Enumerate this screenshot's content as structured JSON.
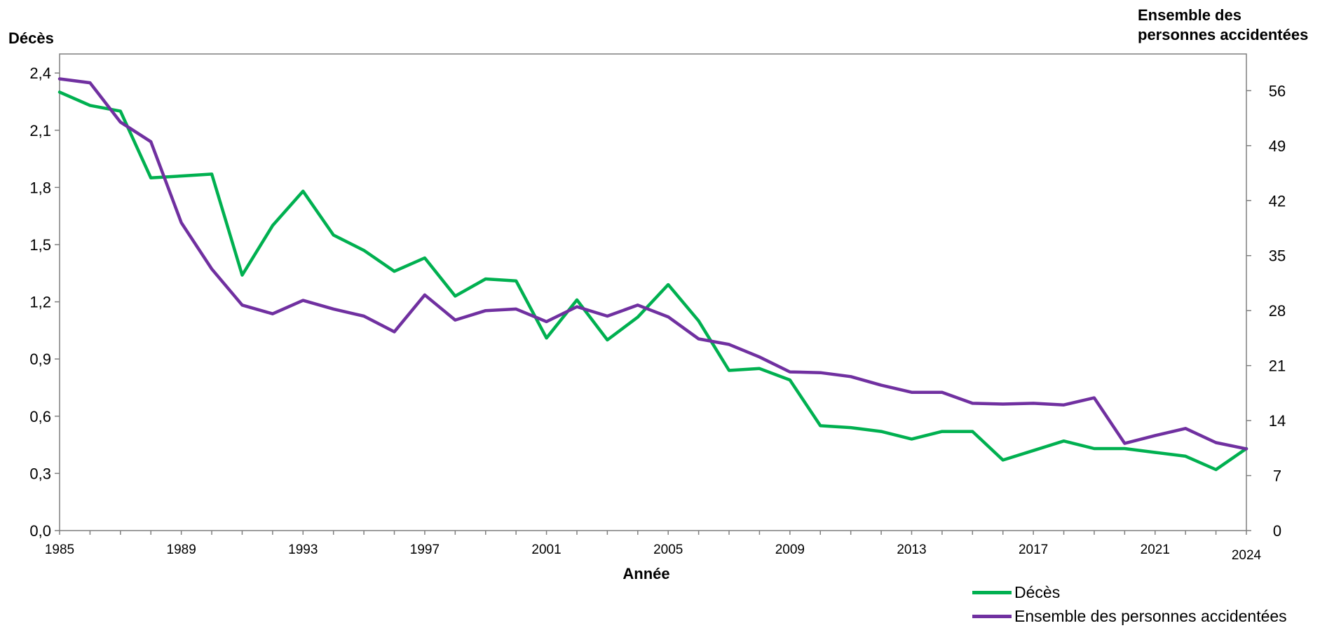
{
  "chart_data": {
    "type": "line",
    "xlabel": "Année",
    "y1label": "Décès",
    "y2label_line1": "Ensemble des",
    "y2label_line2": "personnes accidentées",
    "x": [
      1985,
      1986,
      1987,
      1988,
      1989,
      1990,
      1991,
      1992,
      1993,
      1994,
      1995,
      1996,
      1997,
      1998,
      1999,
      2000,
      2001,
      2002,
      2003,
      2004,
      2005,
      2006,
      2007,
      2008,
      2009,
      2010,
      2011,
      2012,
      2013,
      2014,
      2015,
      2016,
      2017,
      2018,
      2019,
      2020,
      2021,
      2022,
      2023,
      2024
    ],
    "x_ticks": [
      "1985",
      "1989",
      "1993",
      "1997",
      "2001",
      "2005",
      "2009",
      "2013",
      "2017",
      "2021",
      "2024"
    ],
    "y1_ticks": [
      "0,0",
      "0,3",
      "0,6",
      "0,9",
      "1,2",
      "1,5",
      "1,8",
      "2,1",
      "2,4"
    ],
    "y1lim": [
      0,
      2.5
    ],
    "y2_ticks": [
      "0",
      "7",
      "14",
      "21",
      "28",
      "35",
      "42",
      "49",
      "56"
    ],
    "y2lim": [
      0,
      60.67
    ],
    "series": [
      {
        "name": "Décès",
        "axis": "left",
        "color": "#00b050",
        "values": [
          2.3,
          2.23,
          2.2,
          1.85,
          1.86,
          1.87,
          1.34,
          1.6,
          1.78,
          1.55,
          1.47,
          1.36,
          1.43,
          1.23,
          1.32,
          1.31,
          1.01,
          1.21,
          1.0,
          1.12,
          1.29,
          1.1,
          0.84,
          0.85,
          0.79,
          0.55,
          0.54,
          0.52,
          0.48,
          0.52,
          0.52,
          0.37,
          0.42,
          0.47,
          0.43,
          0.43,
          0.41,
          0.39,
          0.32,
          0.43
        ]
      },
      {
        "name": "Ensemble des personnes accidentées",
        "axis": "right",
        "color": "#7030a0",
        "values": [
          57.5,
          57.0,
          52.0,
          49.5,
          39.2,
          33.3,
          28.7,
          27.6,
          29.3,
          28.2,
          27.3,
          25.3,
          30.0,
          26.8,
          28.0,
          28.2,
          26.6,
          28.5,
          27.3,
          28.7,
          27.2,
          24.4,
          23.7,
          22.1,
          20.2,
          20.1,
          19.6,
          18.5,
          17.6,
          17.6,
          16.2,
          16.1,
          16.2,
          16.0,
          16.9,
          11.1,
          12.1,
          13.0,
          11.2,
          10.4
        ]
      }
    ]
  }
}
